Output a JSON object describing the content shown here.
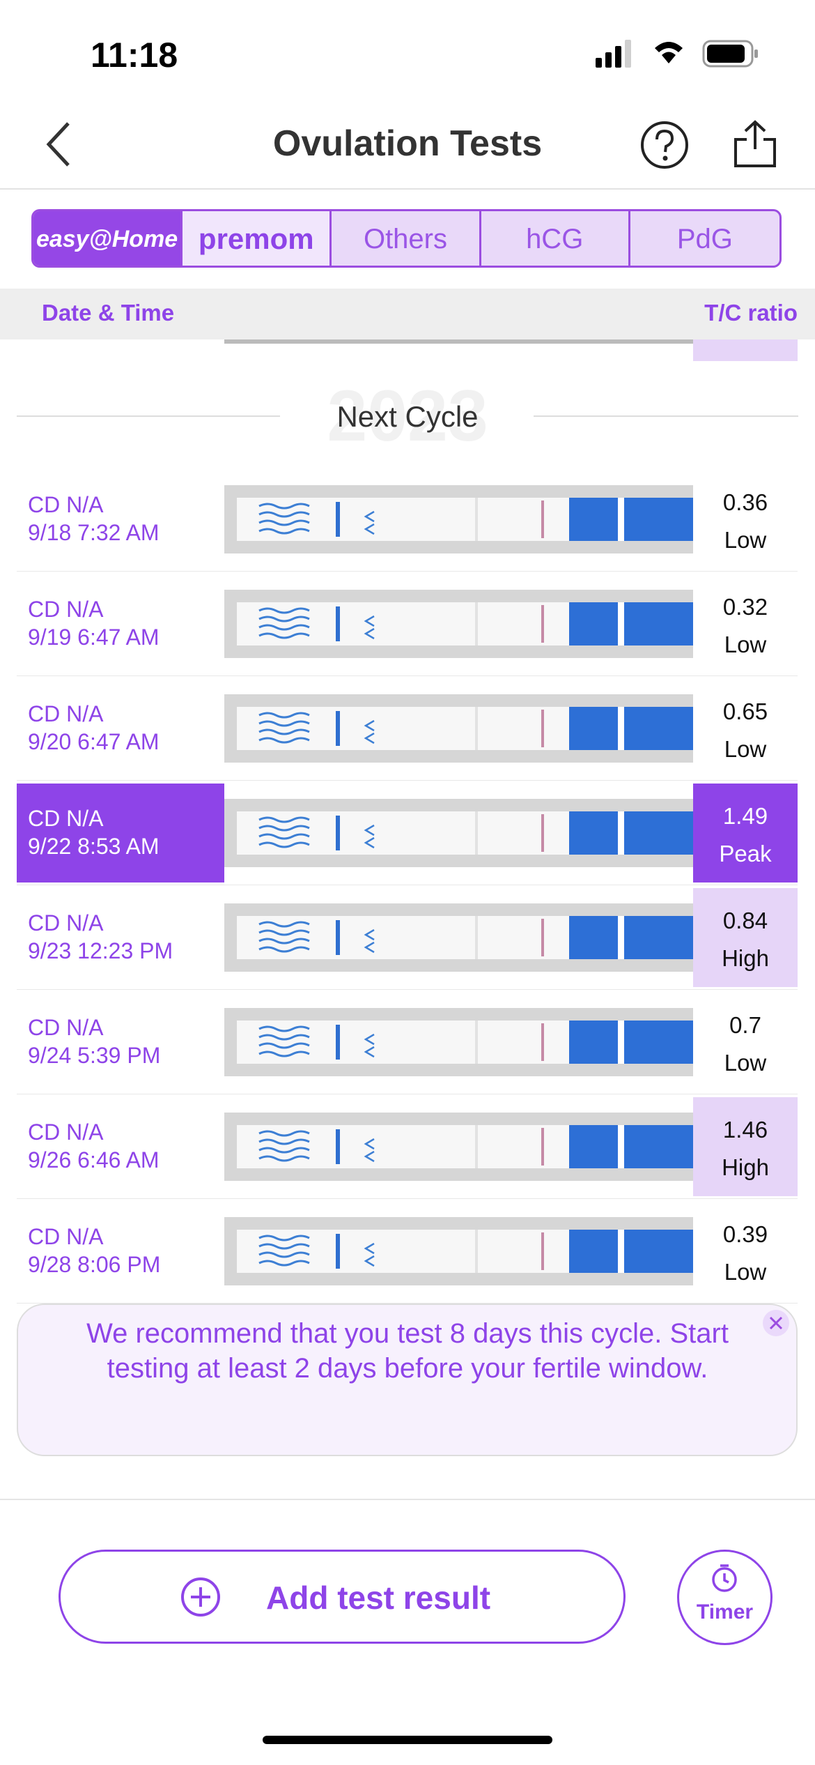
{
  "status_bar": {
    "time": "11:18"
  },
  "nav": {
    "title": "Ovulation Tests"
  },
  "tabs": [
    "easy@Home",
    "premom",
    "Others",
    "hCG",
    "PdG"
  ],
  "table": {
    "headers": [
      "Date & Time",
      "T/C ratio"
    ],
    "year": "2023",
    "section": "Next Cycle",
    "rows": [
      {
        "cd": "CD N/A",
        "date": "9/18 7:32 AM",
        "ratio": "0.36",
        "level": "Low"
      },
      {
        "cd": "CD N/A",
        "date": "9/19 6:47 AM",
        "ratio": "0.32",
        "level": "Low"
      },
      {
        "cd": "CD N/A",
        "date": "9/20 6:47 AM",
        "ratio": "0.65",
        "level": "Low"
      },
      {
        "cd": "CD N/A",
        "date": "9/22 8:53 AM",
        "ratio": "1.49",
        "level": "Peak",
        "color": "#8e44e8"
      },
      {
        "cd": "CD N/A",
        "date": "9/23 12:23 PM",
        "ratio": "0.84",
        "level": "High",
        "color": "#e6d5f8"
      },
      {
        "cd": "CD N/A",
        "date": "9/24 5:39 PM",
        "ratio": "0.7",
        "level": "Low"
      },
      {
        "cd": "CD N/A",
        "date": "9/26 6:46 AM",
        "ratio": "1.46",
        "level": "High",
        "color": "#e6d5f8"
      },
      {
        "cd": "CD N/A",
        "date": "9/28 8:06 PM",
        "ratio": "0.39",
        "level": "Low"
      }
    ]
  },
  "banner": {
    "text": "We recommend that you test 8 days this cycle. Start testing at least 2 days before your fertile window."
  },
  "actions": {
    "add": "Add test result",
    "timer": "Timer"
  }
}
